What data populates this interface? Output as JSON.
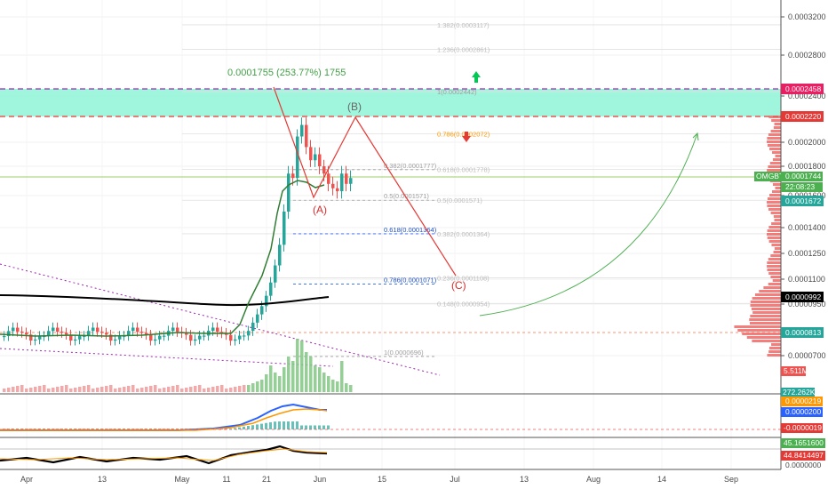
{
  "chart_data": {
    "type": "candlestick",
    "symbol_label": "OMGBTC",
    "last_price": "0.0001744",
    "countdown": "22:08:23",
    "y_ticks": [
      "0.0003200",
      "0.0002800",
      "0.0002400",
      "0.0002000",
      "0.0001800",
      "0.0001600",
      "0.0001400",
      "0.0001250",
      "0.0001100",
      "0.0000950",
      "0.0000700"
    ],
    "x_ticks": [
      "Apr",
      "13",
      "May",
      "11",
      "21",
      "Jun",
      "15",
      "Jul",
      "13",
      "Aug",
      "14",
      "Sep"
    ],
    "price_badges": [
      {
        "label": "0.0002458",
        "color": "#e91e63"
      },
      {
        "label": "0.0002220",
        "color": "#e53935"
      },
      {
        "label": "0.0001672",
        "color": "#26a69a"
      },
      {
        "label": "0.0000992",
        "color": "#000000"
      },
      {
        "label": "0.0000813",
        "color": "#26a69a"
      }
    ],
    "peak_annotation": "0.0001755 (253.77%) 1755",
    "fib_upper": [
      {
        "ratio": "1.382",
        "label": "1.382(0.0003117)"
      },
      {
        "ratio": "1.236",
        "label": "1.236(0.0002861)"
      },
      {
        "ratio": "1",
        "label": "1(0.0002442)"
      },
      {
        "ratio": "0.786",
        "label": "0.786(0.0002072)"
      },
      {
        "ratio": "0.618",
        "label": "0.618(0.0001778)"
      },
      {
        "ratio": "0.5",
        "label": "0.5(0.0001571)"
      },
      {
        "ratio": "0.382",
        "label": "0.382(0.0001364)"
      },
      {
        "ratio": "0.236",
        "label": "0.236(0.0001108)"
      },
      {
        "ratio": "0.148",
        "label": "0.148(0.0000954)"
      }
    ],
    "fib_retrace": [
      {
        "ratio": "0.382",
        "label": "0.382(0.0001777)"
      },
      {
        "ratio": "0.5",
        "label": "0.5(0.0001571)"
      },
      {
        "ratio": "0.618",
        "label": "0.618(0.0001364)"
      },
      {
        "ratio": "0.786",
        "label": "0.786(0.0001071)"
      },
      {
        "ratio": "1",
        "label": "1(0.0000696)"
      }
    ],
    "waves": [
      "(A)",
      "(B)",
      "(C)"
    ],
    "volume_label": "5.511M",
    "volume_label2": "272.262K",
    "macd_labels": [
      "0.0000219",
      "0.0000200",
      "-0.0000019"
    ],
    "stoch_labels": [
      "45.1651600",
      "44.8414497",
      "0.0000000"
    ],
    "colors": {
      "up": "#26a69a",
      "down": "#ef5350",
      "zone": "#80f0d0",
      "fib_blue": "#2962ff",
      "wave_red": "#e53935",
      "green_arc": "#4caf50"
    }
  }
}
